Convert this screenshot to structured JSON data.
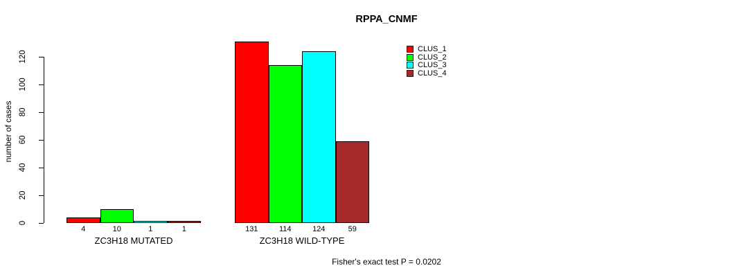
{
  "chart_data": {
    "type": "bar",
    "title": "RPPA_CNMF",
    "ylabel": "number of cases",
    "xlabel": "",
    "categories": [
      "ZC3H18 MUTATED",
      "ZC3H18 WILD-TYPE"
    ],
    "series": [
      {
        "name": "CLUS_1",
        "color": "#FF0000",
        "values": [
          4,
          131
        ]
      },
      {
        "name": "CLUS_2",
        "color": "#00FF00",
        "values": [
          10,
          114
        ]
      },
      {
        "name": "CLUS_3",
        "color": "#00FFFF",
        "values": [
          1,
          124
        ]
      },
      {
        "name": "CLUS_4",
        "color": "#A52A2A",
        "values": [
          1,
          59
        ]
      }
    ],
    "yticks": [
      0,
      20,
      40,
      60,
      80,
      100,
      120
    ],
    "ylim": [
      0,
      131
    ],
    "bar_value_labels": [
      [
        "4",
        "10",
        "1",
        "1"
      ],
      [
        "131",
        "114",
        "124",
        "59"
      ]
    ],
    "grid": false,
    "legend_position": "top-right",
    "annotation": "Fisher's exact test P = 0.0202"
  }
}
